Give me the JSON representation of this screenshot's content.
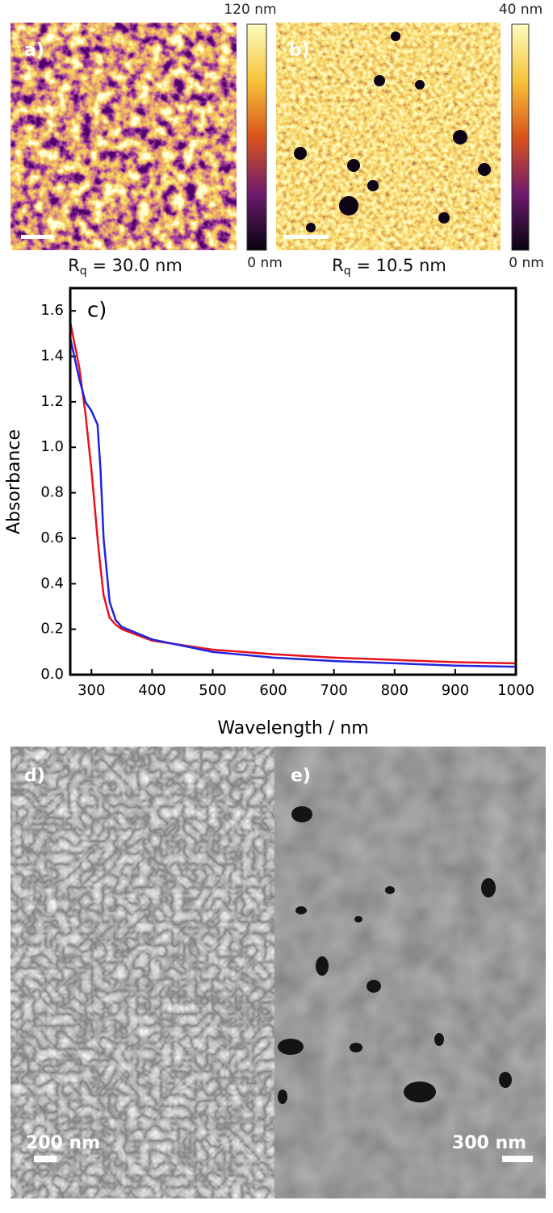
{
  "panels": {
    "a": {
      "label": "a)",
      "colorbar_max": "120 nm",
      "colorbar_min": "0 nm",
      "roughness": {
        "symbol": "R",
        "subscript": "q",
        "text": " = 30.0 nm"
      }
    },
    "b": {
      "label": "b)",
      "colorbar_max": "40 nm",
      "colorbar_min": "0 nm",
      "roughness": {
        "symbol": "R",
        "subscript": "q",
        "text": " = 10.5 nm"
      }
    },
    "d": {
      "label": "d)",
      "scale": "200 nm"
    },
    "e": {
      "label": "e)",
      "scale": "300 nm"
    }
  },
  "chart_data": {
    "type": "line",
    "annotation": "c)",
    "x_label": "Wavelength / nm",
    "y_label": "Absorbance",
    "x": [
      265,
      280,
      290,
      300,
      310,
      315,
      320,
      330,
      340,
      350,
      400,
      500,
      600,
      700,
      800,
      900,
      1000
    ],
    "series": [
      {
        "color": "#e8131b",
        "values": [
          1.55,
          1.35,
          1.15,
          0.9,
          0.6,
          0.47,
          0.35,
          0.25,
          0.22,
          0.2,
          0.15,
          0.11,
          0.09,
          0.075,
          0.065,
          0.055,
          0.05
        ]
      },
      {
        "color": "#1f23e0",
        "values": [
          1.48,
          1.3,
          1.2,
          1.16,
          1.1,
          0.9,
          0.6,
          0.32,
          0.24,
          0.21,
          0.155,
          0.1,
          0.075,
          0.06,
          0.05,
          0.04,
          0.035
        ]
      }
    ],
    "xlim": [
      265,
      1000
    ],
    "xticks": [
      300,
      400,
      500,
      600,
      700,
      800,
      900,
      1000
    ],
    "ylim": [
      0,
      1.7
    ],
    "yticks": [
      {
        "value": 0,
        "label": "0.0"
      },
      0.2,
      0.4,
      0.6,
      0.8,
      {
        "value": 1,
        "label": "1.0"
      },
      1.2,
      1.4,
      1.6
    ]
  }
}
